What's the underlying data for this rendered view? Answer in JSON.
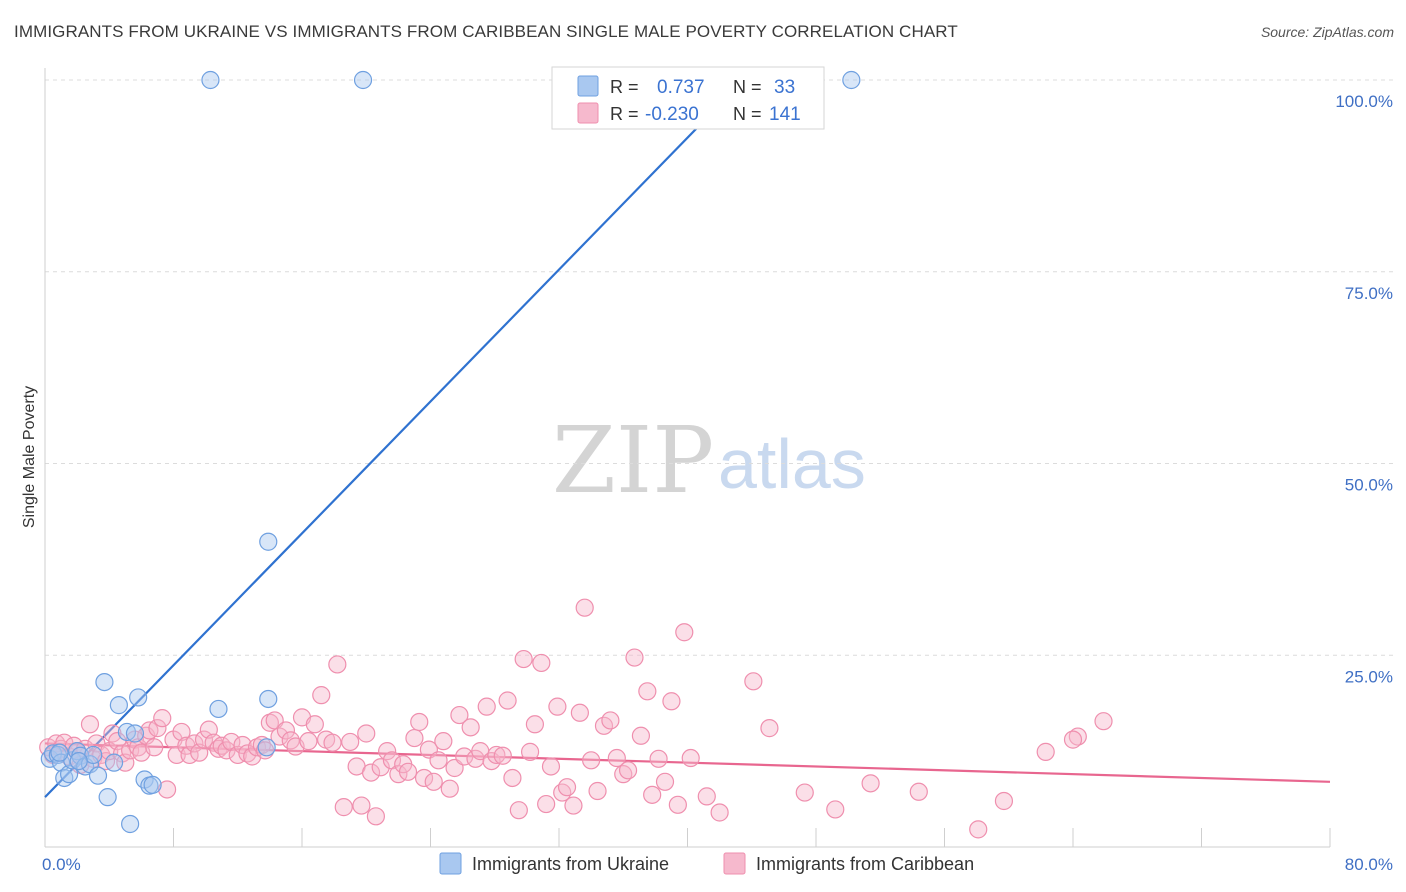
{
  "header": {
    "title": "IMMIGRANTS FROM UKRAINE VS IMMIGRANTS FROM CARIBBEAN SINGLE MALE POVERTY CORRELATION CHART",
    "source": "Source: ZipAtlas.com"
  },
  "watermark": {
    "zip": "ZIP",
    "atlas": "atlas"
  },
  "legend": {
    "rows": [
      {
        "r_label": "R =",
        "r_value": "0.737",
        "n_label": "N =",
        "n_value": "33",
        "color": "#a9c8f0"
      },
      {
        "r_label": "R =",
        "r_value": "-0.230",
        "n_label": "N =",
        "n_value": "141",
        "color": "#f6b9cd"
      }
    ]
  },
  "chart_data": {
    "type": "scatter",
    "title": "IMMIGRANTS FROM UKRAINE VS IMMIGRANTS FROM CARIBBEAN SINGLE MALE POVERTY CORRELATION CHART",
    "xlabel": "",
    "ylabel": "Single Male Poverty",
    "xlim": [
      0,
      80
    ],
    "ylim": [
      0,
      100
    ],
    "x_tick_labels": [
      "0.0%",
      "80.0%"
    ],
    "y_ticks": [
      25,
      50,
      75,
      100
    ],
    "y_tick_labels": [
      "25.0%",
      "50.0%",
      "75.0%",
      "100.0%"
    ],
    "grid": true,
    "series": [
      {
        "name": "Immigrants from Ukraine",
        "color": "#6fa0e0",
        "fill": "#a9c8f0",
        "line_color": "#2f72d0",
        "trend": [
          [
            0,
            6.5
          ],
          [
            43.5,
            100
          ]
        ],
        "points": [
          [
            0.3,
            11.5
          ],
          [
            0.5,
            12.2
          ],
          [
            0.8,
            12.0
          ],
          [
            1.0,
            11.0
          ],
          [
            1.2,
            9.0
          ],
          [
            1.5,
            9.5
          ],
          [
            1.7,
            11.3
          ],
          [
            2.0,
            12.5
          ],
          [
            2.2,
            11.9
          ],
          [
            2.5,
            10.5
          ],
          [
            2.8,
            10.8
          ],
          [
            3.0,
            12.0
          ],
          [
            3.3,
            9.3
          ],
          [
            3.7,
            21.5
          ],
          [
            3.9,
            6.5
          ],
          [
            4.3,
            11.0
          ],
          [
            4.6,
            18.5
          ],
          [
            5.1,
            15.0
          ],
          [
            5.3,
            3.0
          ],
          [
            5.6,
            14.8
          ],
          [
            5.8,
            19.5
          ],
          [
            6.2,
            8.8
          ],
          [
            6.5,
            8.0
          ],
          [
            6.7,
            8.1
          ],
          [
            10.3,
            100
          ],
          [
            10.8,
            18.0
          ],
          [
            13.9,
            19.3
          ],
          [
            13.9,
            39.8
          ],
          [
            13.8,
            13.0
          ],
          [
            19.8,
            100
          ],
          [
            50.2,
            100
          ],
          [
            0.9,
            12.3
          ],
          [
            2.1,
            11.2
          ]
        ]
      },
      {
        "name": "Immigrants from Caribbean",
        "color": "#ef8fae",
        "fill": "#f6b9cd",
        "line_color": "#e8668f",
        "trend": [
          [
            0,
            13.5
          ],
          [
            80,
            8.5
          ]
        ],
        "points": [
          [
            0.2,
            13.0
          ],
          [
            0.5,
            12.0
          ],
          [
            0.7,
            13.5
          ],
          [
            1.0,
            12.8
          ],
          [
            1.2,
            13.6
          ],
          [
            1.5,
            11.8
          ],
          [
            1.8,
            13.2
          ],
          [
            2.0,
            12.5
          ],
          [
            2.2,
            10.7
          ],
          [
            2.5,
            12.8
          ],
          [
            2.8,
            16.0
          ],
          [
            3.0,
            11.5
          ],
          [
            3.2,
            13.5
          ],
          [
            3.5,
            12.0
          ],
          [
            3.8,
            11.2
          ],
          [
            4.0,
            12.5
          ],
          [
            4.2,
            14.8
          ],
          [
            4.5,
            13.8
          ],
          [
            4.8,
            12.2
          ],
          [
            5.0,
            11.0
          ],
          [
            5.3,
            12.6
          ],
          [
            5.6,
            14.0
          ],
          [
            5.8,
            13.0
          ],
          [
            6.0,
            12.3
          ],
          [
            6.3,
            14.5
          ],
          [
            6.5,
            15.2
          ],
          [
            6.8,
            13.0
          ],
          [
            7.0,
            15.5
          ],
          [
            7.3,
            16.8
          ],
          [
            7.6,
            7.5
          ],
          [
            8.0,
            14.0
          ],
          [
            8.2,
            12.0
          ],
          [
            8.5,
            15.0
          ],
          [
            8.8,
            13.2
          ],
          [
            9.0,
            12.0
          ],
          [
            9.3,
            13.5
          ],
          [
            9.6,
            12.3
          ],
          [
            9.9,
            14.0
          ],
          [
            10.2,
            15.3
          ],
          [
            10.5,
            13.6
          ],
          [
            10.8,
            12.8
          ],
          [
            11.0,
            13.2
          ],
          [
            11.3,
            12.6
          ],
          [
            11.6,
            13.7
          ],
          [
            12.0,
            12.0
          ],
          [
            12.3,
            13.3
          ],
          [
            12.6,
            12.2
          ],
          [
            12.9,
            11.8
          ],
          [
            13.2,
            13.0
          ],
          [
            13.5,
            13.3
          ],
          [
            13.7,
            12.6
          ],
          [
            14.0,
            16.2
          ],
          [
            14.3,
            16.5
          ],
          [
            14.6,
            14.4
          ],
          [
            15.0,
            15.2
          ],
          [
            15.3,
            13.9
          ],
          [
            15.6,
            13.1
          ],
          [
            16.0,
            16.9
          ],
          [
            16.4,
            13.8
          ],
          [
            16.8,
            16.0
          ],
          [
            17.2,
            19.8
          ],
          [
            17.5,
            14.0
          ],
          [
            17.9,
            13.6
          ],
          [
            18.2,
            23.8
          ],
          [
            18.6,
            5.2
          ],
          [
            19.0,
            13.7
          ],
          [
            19.4,
            10.5
          ],
          [
            19.7,
            5.4
          ],
          [
            20.0,
            14.8
          ],
          [
            20.3,
            9.7
          ],
          [
            20.6,
            4.0
          ],
          [
            20.9,
            10.4
          ],
          [
            21.3,
            12.5
          ],
          [
            21.6,
            11.3
          ],
          [
            22.0,
            9.5
          ],
          [
            22.3,
            10.8
          ],
          [
            22.6,
            9.8
          ],
          [
            23.0,
            14.2
          ],
          [
            23.3,
            16.3
          ],
          [
            23.6,
            9.0
          ],
          [
            23.9,
            12.7
          ],
          [
            24.2,
            8.5
          ],
          [
            24.5,
            11.3
          ],
          [
            24.8,
            13.8
          ],
          [
            25.2,
            7.6
          ],
          [
            25.5,
            10.3
          ],
          [
            25.8,
            17.2
          ],
          [
            26.1,
            11.8
          ],
          [
            26.5,
            15.6
          ],
          [
            26.8,
            11.5
          ],
          [
            27.1,
            12.5
          ],
          [
            27.5,
            18.3
          ],
          [
            27.8,
            11.2
          ],
          [
            28.1,
            12.0
          ],
          [
            28.5,
            11.9
          ],
          [
            28.8,
            19.1
          ],
          [
            29.1,
            9.0
          ],
          [
            29.5,
            4.8
          ],
          [
            29.8,
            24.5
          ],
          [
            30.2,
            12.4
          ],
          [
            30.5,
            16.0
          ],
          [
            30.9,
            24.0
          ],
          [
            31.2,
            5.6
          ],
          [
            31.5,
            10.5
          ],
          [
            31.9,
            18.3
          ],
          [
            32.2,
            7.1
          ],
          [
            32.5,
            7.8
          ],
          [
            32.9,
            5.4
          ],
          [
            33.3,
            17.5
          ],
          [
            33.6,
            31.2
          ],
          [
            34.0,
            11.3
          ],
          [
            34.4,
            7.3
          ],
          [
            34.8,
            15.8
          ],
          [
            35.2,
            16.5
          ],
          [
            35.6,
            11.6
          ],
          [
            36.0,
            9.5
          ],
          [
            36.3,
            10.0
          ],
          [
            36.7,
            24.7
          ],
          [
            37.1,
            14.5
          ],
          [
            37.5,
            20.3
          ],
          [
            37.8,
            6.8
          ],
          [
            38.2,
            11.5
          ],
          [
            38.6,
            8.5
          ],
          [
            39.0,
            19.0
          ],
          [
            39.4,
            5.5
          ],
          [
            39.8,
            28.0
          ],
          [
            40.2,
            11.6
          ],
          [
            41.2,
            6.6
          ],
          [
            42.0,
            4.5
          ],
          [
            44.1,
            21.6
          ],
          [
            45.1,
            15.5
          ],
          [
            47.3,
            7.1
          ],
          [
            49.2,
            4.9
          ],
          [
            51.4,
            8.3
          ],
          [
            54.4,
            7.2
          ],
          [
            59.7,
            6.0
          ],
          [
            62.3,
            12.4
          ],
          [
            64.3,
            14.4
          ],
          [
            65.9,
            16.4
          ],
          [
            64.0,
            14.0
          ],
          [
            58.1,
            2.3
          ]
        ]
      }
    ]
  },
  "bottom_legend": {
    "items": [
      {
        "label": "Immigrants from Ukraine",
        "color": "#a9c8f0",
        "stroke": "#6fa0e0"
      },
      {
        "label": "Immigrants from Caribbean",
        "color": "#f6b9cd",
        "stroke": "#ef8fae"
      }
    ]
  }
}
